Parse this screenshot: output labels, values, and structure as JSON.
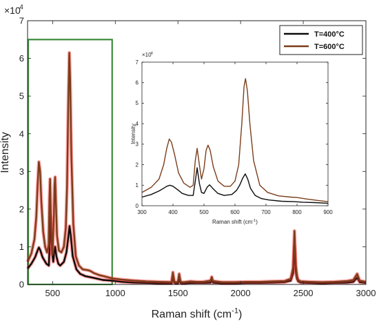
{
  "chart_data": [
    {
      "id": "main",
      "type": "line",
      "xlabel": "Raman shift (cm",
      "xlabel_sup": "-1",
      "xlabel_end": ")",
      "ylabel": "Intensity",
      "y_multiplier_base": "×10",
      "y_multiplier_exp": "4",
      "xlim": [
        300,
        3000
      ],
      "ylim": [
        0,
        7
      ],
      "x_ticks": [
        500,
        1000,
        1500,
        2000,
        2500,
        3000
      ],
      "y_ticks": [
        0,
        1,
        2,
        3,
        4,
        5,
        6,
        7
      ],
      "x_tick_labels": [
        "500",
        "1000",
        "1500",
        "2000",
        "2500",
        "3000"
      ],
      "y_tick_labels": [
        "0",
        "1",
        "2",
        "3",
        "4",
        "5",
        "6",
        "7"
      ],
      "highlight_box": {
        "x_range": [
          300,
          975
        ],
        "y_range": [
          0,
          6.5
        ],
        "color": "#3a8a3a"
      },
      "legend": {
        "placement": "top-right"
      },
      "series": [
        {
          "name": "T=400°C",
          "color": "#0a0a0a",
          "x": [
            300,
            330,
            360,
            380,
            390,
            400,
            420,
            450,
            470,
            478,
            485,
            495,
            505,
            512,
            520,
            530,
            545,
            560,
            590,
            610,
            625,
            635,
            645,
            660,
            690,
            720,
            760,
            790,
            820,
            860,
            900,
            975,
            1050,
            1150,
            1250,
            1350,
            1450,
            1460,
            1470,
            1480,
            1500,
            1510,
            1520,
            1530,
            1550,
            1600,
            1700,
            1760,
            1770,
            1780,
            1850,
            1950,
            2050,
            2150,
            2250,
            2350,
            2400,
            2420,
            2430,
            2440,
            2450,
            2460,
            2480,
            2550,
            2650,
            2750,
            2850,
            2900,
            2930,
            2950,
            3000
          ],
          "y": [
            0.42,
            0.55,
            0.72,
            0.9,
            0.98,
            0.92,
            0.72,
            0.55,
            0.5,
            1.2,
            1.8,
            0.9,
            0.6,
            0.85,
            1.0,
            0.75,
            0.55,
            0.5,
            0.6,
            0.85,
            1.25,
            1.55,
            1.3,
            0.75,
            0.4,
            0.28,
            0.22,
            0.2,
            0.18,
            0.15,
            0.12,
            0.1,
            0.07,
            0.05,
            0.04,
            0.03,
            0.03,
            0.2,
            0.05,
            0.03,
            0.03,
            0.15,
            0.04,
            0.03,
            0.03,
            0.04,
            0.04,
            0.05,
            0.12,
            0.05,
            0.03,
            0.03,
            0.04,
            0.04,
            0.05,
            0.06,
            0.1,
            0.3,
            1.0,
            0.35,
            0.15,
            0.08,
            0.05,
            0.04,
            0.03,
            0.04,
            0.05,
            0.07,
            0.18,
            0.06,
            0.04
          ]
        },
        {
          "name": "T=600°C",
          "color": "#7a3d1a",
          "x": [
            300,
            330,
            355,
            370,
            380,
            390,
            400,
            410,
            425,
            440,
            455,
            468,
            475,
            480,
            485,
            495,
            500,
            510,
            515,
            520,
            525,
            535,
            550,
            570,
            590,
            605,
            615,
            625,
            633,
            640,
            650,
            665,
            685,
            710,
            740,
            780,
            800,
            830,
            870,
            930,
            975,
            1050,
            1150,
            1250,
            1350,
            1450,
            1460,
            1470,
            1480,
            1500,
            1510,
            1520,
            1530,
            1550,
            1600,
            1650,
            1700,
            1760,
            1770,
            1780,
            1850,
            1950,
            2050,
            2150,
            2250,
            2350,
            2400,
            2420,
            2430,
            2440,
            2450,
            2460,
            2480,
            2550,
            2650,
            2750,
            2850,
            2900,
            2930,
            2950,
            3000
          ],
          "y": [
            0.6,
            0.82,
            1.2,
            1.8,
            2.6,
            3.25,
            3.0,
            2.2,
            1.4,
            1.0,
            0.85,
            1.05,
            2.3,
            2.8,
            2.0,
            0.8,
            0.9,
            1.8,
            2.6,
            2.85,
            2.3,
            1.3,
            0.9,
            0.85,
            1.0,
            1.5,
            2.6,
            4.8,
            6.15,
            5.4,
            3.4,
            1.6,
            0.75,
            0.5,
            0.4,
            0.38,
            0.36,
            0.3,
            0.25,
            0.2,
            0.16,
            0.13,
            0.1,
            0.08,
            0.07,
            0.06,
            0.32,
            0.08,
            0.06,
            0.06,
            0.28,
            0.08,
            0.06,
            0.06,
            0.08,
            0.07,
            0.07,
            0.1,
            0.2,
            0.09,
            0.06,
            0.06,
            0.07,
            0.07,
            0.08,
            0.09,
            0.15,
            0.45,
            1.42,
            0.5,
            0.22,
            0.12,
            0.08,
            0.07,
            0.06,
            0.07,
            0.09,
            0.12,
            0.28,
            0.1,
            0.07
          ]
        }
      ]
    },
    {
      "id": "inset",
      "type": "line",
      "xlabel": "Raman shift (cm",
      "xlabel_sup": "-1",
      "xlabel_end": ")",
      "ylabel": "Intensity",
      "y_multiplier_base": "×10",
      "y_multiplier_exp": "4",
      "xlim": [
        300,
        900
      ],
      "ylim": [
        0,
        7
      ],
      "x_ticks": [
        300,
        400,
        500,
        600,
        700,
        800,
        900
      ],
      "y_ticks": [
        0,
        1,
        2,
        3,
        4,
        5,
        6,
        7
      ],
      "x_tick_labels": [
        "300",
        "400",
        "500",
        "600",
        "700",
        "800",
        "900"
      ],
      "y_tick_labels": [
        "0",
        "1",
        "2",
        "3",
        "4",
        "5",
        "6",
        "7"
      ],
      "series": [
        {
          "name": "T=400°C",
          "color": "#0a0a0a",
          "x": [
            300,
            330,
            355,
            370,
            380,
            390,
            400,
            415,
            430,
            450,
            465,
            472,
            478,
            485,
            492,
            500,
            510,
            518,
            528,
            545,
            565,
            590,
            605,
            615,
            625,
            633,
            641,
            650,
            665,
            685,
            710,
            750,
            790,
            820,
            860,
            900
          ],
          "y": [
            0.42,
            0.55,
            0.72,
            0.85,
            0.95,
            1.0,
            0.95,
            0.78,
            0.6,
            0.5,
            0.5,
            1.2,
            1.85,
            1.1,
            0.65,
            0.6,
            0.9,
            1.02,
            0.85,
            0.6,
            0.5,
            0.55,
            0.75,
            1.0,
            1.35,
            1.55,
            1.3,
            0.85,
            0.5,
            0.35,
            0.28,
            0.22,
            0.2,
            0.17,
            0.15,
            0.12
          ]
        },
        {
          "name": "T=600°C",
          "color": "#7a3d1a",
          "x": [
            300,
            330,
            355,
            370,
            380,
            388,
            395,
            405,
            418,
            435,
            455,
            465,
            472,
            478,
            485,
            492,
            500,
            507,
            513,
            520,
            530,
            545,
            565,
            585,
            600,
            612,
            622,
            629,
            634,
            640,
            648,
            660,
            680,
            705,
            740,
            780,
            800,
            830,
            870,
            900
          ],
          "y": [
            0.65,
            0.9,
            1.3,
            2.0,
            2.8,
            3.25,
            3.1,
            2.5,
            1.6,
            1.1,
            0.9,
            1.0,
            2.2,
            2.8,
            2.0,
            1.3,
            1.8,
            2.7,
            2.95,
            2.7,
            1.9,
            1.2,
            0.95,
            0.95,
            1.2,
            2.0,
            4.0,
            5.8,
            6.2,
            5.6,
            4.0,
            2.2,
            1.0,
            0.65,
            0.48,
            0.42,
            0.4,
            0.33,
            0.25,
            0.2
          ]
        }
      ]
    }
  ]
}
